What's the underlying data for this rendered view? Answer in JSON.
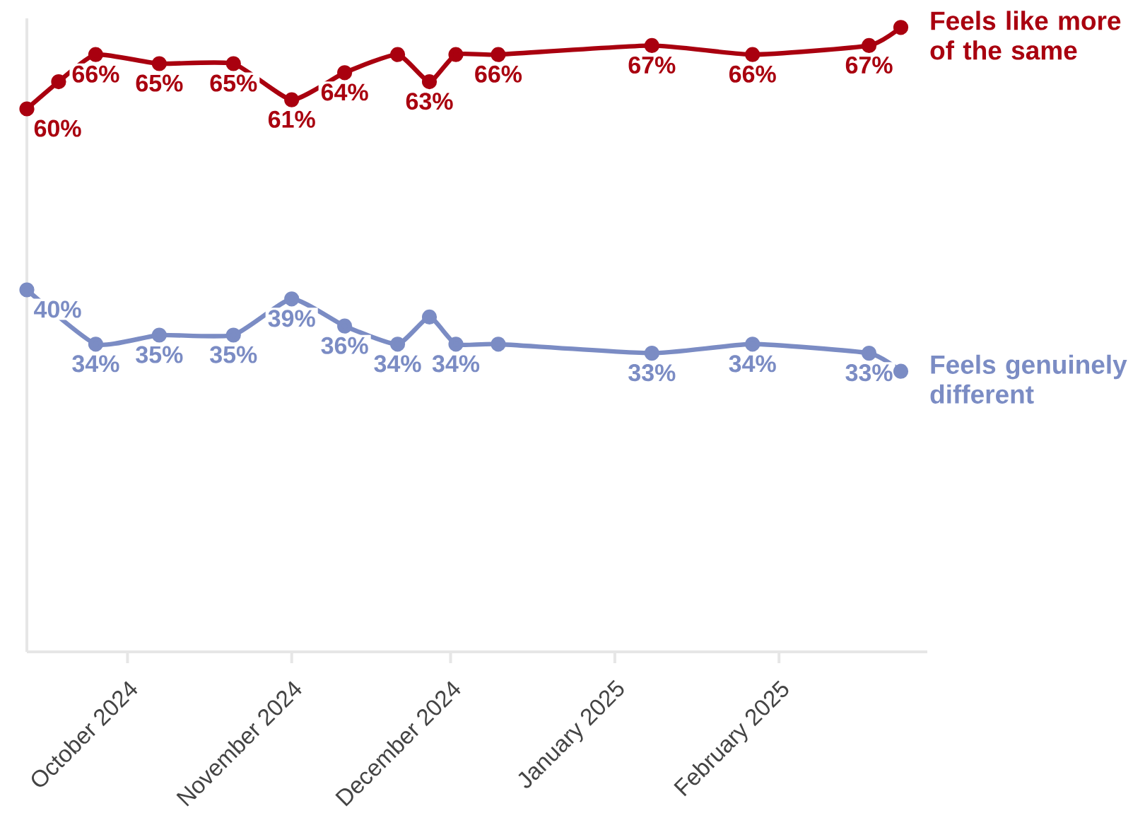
{
  "chart_data": {
    "type": "line",
    "x": [
      "2024-09-12",
      "2024-09-18",
      "2024-09-25",
      "2024-10-07",
      "2024-10-21",
      "2024-11-01",
      "2024-11-11",
      "2024-11-21",
      "2024-11-27",
      "2024-12-02",
      "2024-12-10",
      "2025-01-08",
      "2025-01-27",
      "2025-02-18",
      "2025-02-24"
    ],
    "xlim": [
      "2024-09-12",
      "2025-03-01"
    ],
    "xticks": [
      {
        "value": "2024-10-01",
        "label": "October 2024"
      },
      {
        "value": "2024-11-01",
        "label": "November 2024"
      },
      {
        "value": "2024-12-01",
        "label": "December 2024"
      },
      {
        "value": "2025-01-01",
        "label": "January 2025"
      },
      {
        "value": "2025-02-01",
        "label": "February 2025"
      }
    ],
    "ylim": [
      0,
      70
    ],
    "tick_labels": "x",
    "marker": "circle",
    "series": [
      {
        "name": "Feels like more of the same",
        "color": "#a9000f",
        "values": [
          60,
          63,
          66,
          65,
          65,
          61,
          64,
          66,
          63,
          66,
          66,
          67,
          66,
          67,
          69
        ],
        "value_labels": [
          "60%",
          null,
          "66%",
          "65%",
          "65%",
          "61%",
          "64%",
          null,
          "63%",
          null,
          "66%",
          "67%",
          "66%",
          "67%",
          null
        ]
      },
      {
        "name": "Feels genuinely different",
        "color": "#7b8cc4",
        "x": [
          "2024-09-12",
          "2024-09-25",
          "2024-10-07",
          "2024-10-21",
          "2024-11-01",
          "2024-11-11",
          "2024-11-21",
          "2024-11-27",
          "2024-12-02",
          "2024-12-10",
          "2025-01-08",
          "2025-01-27",
          "2025-02-18",
          "2025-02-24"
        ],
        "values": [
          40,
          34,
          35,
          35,
          39,
          36,
          34,
          37,
          34,
          34,
          33,
          34,
          33,
          31
        ],
        "value_labels": [
          "40%",
          "34%",
          "35%",
          "35%",
          "39%",
          "36%",
          "34%",
          null,
          "34%",
          null,
          "33%",
          "34%",
          "33%",
          null
        ]
      }
    ]
  }
}
